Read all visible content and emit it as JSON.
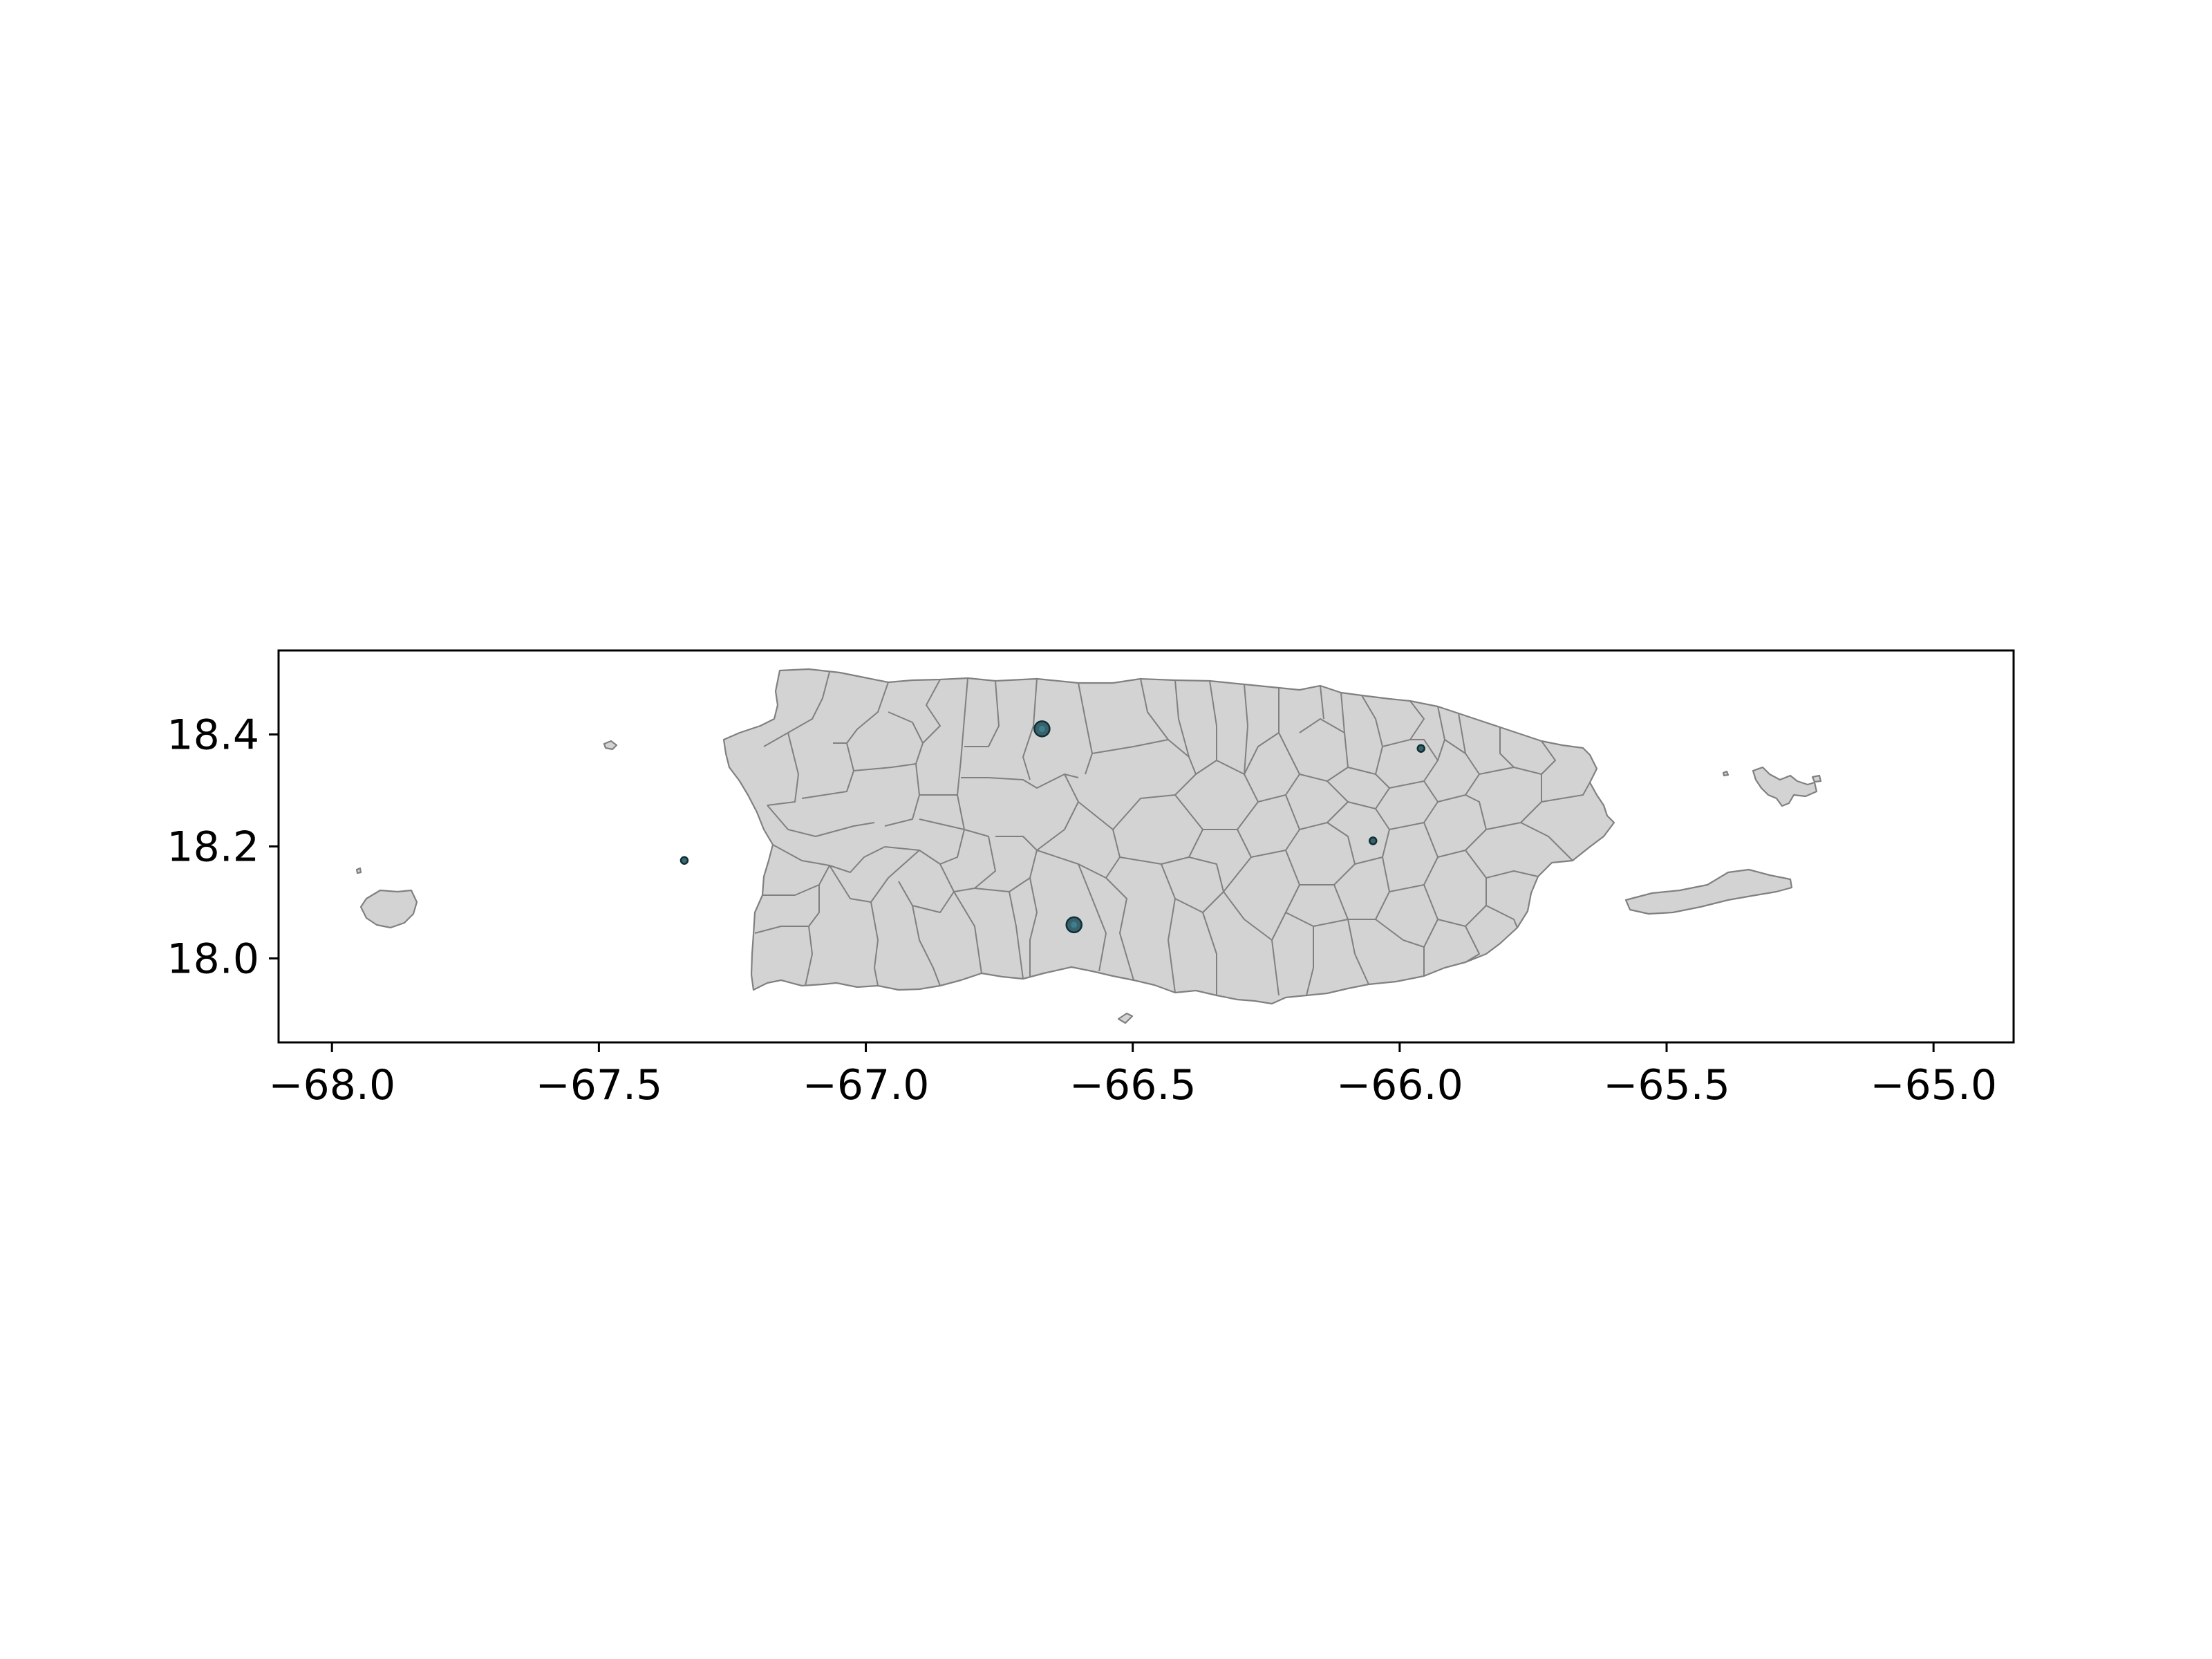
{
  "chart_data": {
    "type": "scatter",
    "title": "",
    "xlabel": "",
    "ylabel": "",
    "xlim": [
      -68.1,
      -64.85
    ],
    "ylim": [
      17.85,
      18.55
    ],
    "xticks": [
      -68.0,
      -67.5,
      -67.0,
      -66.5,
      -66.0,
      -65.5,
      -65.0
    ],
    "yticks": [
      18.0,
      18.2,
      18.4
    ],
    "xtick_labels": [
      "−68.0",
      "−67.5",
      "−67.0",
      "−66.5",
      "−66.0",
      "−65.5",
      "−65.0"
    ],
    "ytick_labels": [
      "18.0",
      "18.2",
      "18.4"
    ],
    "grid": false,
    "basemap": "Puerto Rico municipalities",
    "land_color": "#d3d3d3",
    "boundary_color": "#808080",
    "point_color": "#1f4e5a",
    "points": [
      {
        "x": -66.67,
        "y": 18.41,
        "size": 3
      },
      {
        "x": -66.61,
        "y": 18.06,
        "size": 3
      },
      {
        "x": -67.34,
        "y": 18.175,
        "size": 1
      },
      {
        "x": -66.05,
        "y": 18.21,
        "size": 1
      },
      {
        "x": -65.96,
        "y": 18.375,
        "size": 1
      }
    ]
  }
}
